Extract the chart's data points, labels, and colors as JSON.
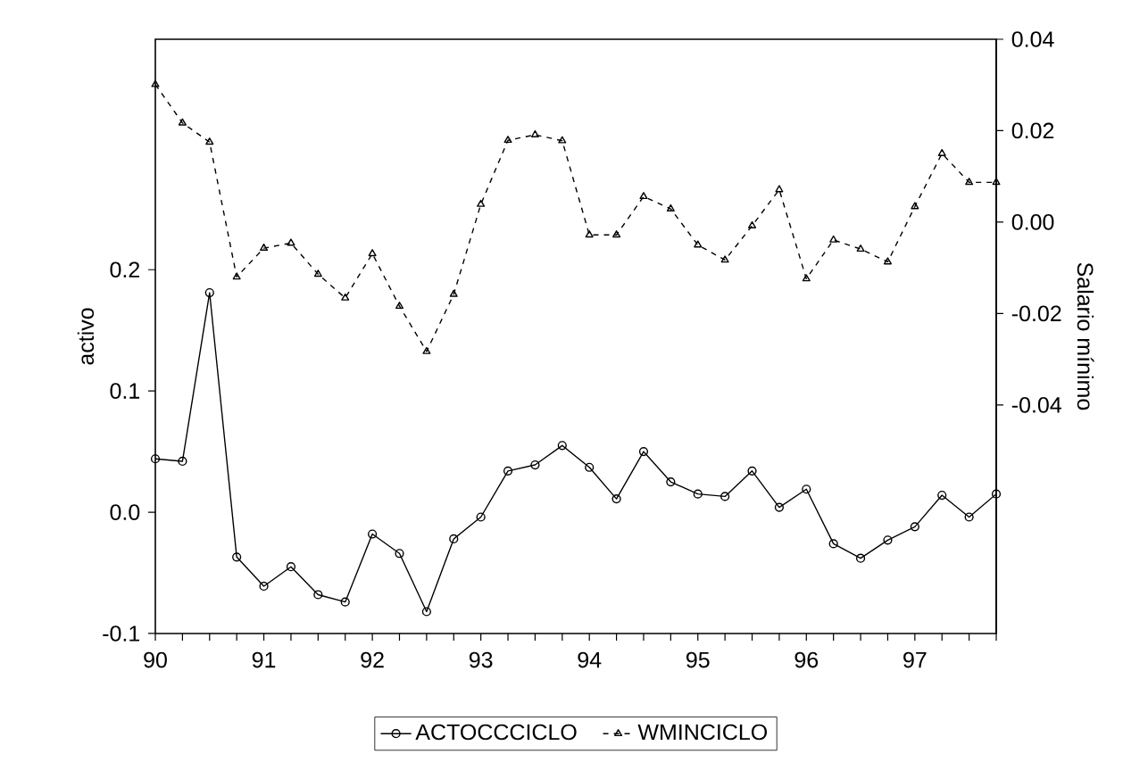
{
  "chart_data": {
    "type": "line",
    "ylabel": "activo",
    "y2label": "Salario mínimo",
    "x": [
      90,
      90.25,
      90.5,
      90.75,
      91,
      91.25,
      91.5,
      91.75,
      92,
      92.25,
      92.5,
      92.75,
      93,
      93.25,
      93.5,
      93.75,
      94,
      94.25,
      94.5,
      94.75,
      95,
      95.25,
      95.5,
      95.75,
      96,
      96.25,
      96.5,
      96.75,
      97,
      97.25,
      97.5,
      97.75
    ],
    "series": [
      {
        "name": "ACTOCCCICLO",
        "color": "#000000",
        "marker": "circle",
        "line_style": "solid",
        "values": [
          0.044,
          0.042,
          0.181,
          -0.037,
          -0.061,
          -0.045,
          -0.068,
          -0.074,
          -0.018,
          -0.034,
          -0.082,
          -0.022,
          -0.004,
          0.034,
          0.039,
          0.055,
          0.037,
          0.011,
          0.05,
          0.025,
          0.015,
          0.013,
          0.034,
          0.004,
          0.019,
          -0.026,
          -0.038,
          -0.023,
          -0.012,
          0.014,
          -0.004,
          0.015
        ]
      },
      {
        "name": "WMINCICLO",
        "color": "#000000",
        "marker": "triangle",
        "line_style": "dashed",
        "axis": "y2",
        "values": [
          0.0301,
          0.0217,
          0.0175,
          -0.012,
          -0.0057,
          -0.0046,
          -0.0114,
          -0.0166,
          -0.0069,
          -0.0184,
          -0.0283,
          -0.0158,
          0.0039,
          0.0179,
          0.0191,
          0.0178,
          -0.0028,
          -0.0028,
          0.0056,
          0.0029,
          -0.005,
          -0.0083,
          -0.0008,
          0.0071,
          -0.0124,
          -0.0039,
          -0.0059,
          -0.0087,
          0.0034,
          0.015,
          0.0087,
          0.0087
        ]
      }
    ],
    "xlim": [
      90,
      97.75
    ],
    "xticks": [
      90,
      {
        "value": 90.25,
        "label": null
      },
      {
        "value": 90.5,
        "label": null
      },
      {
        "value": 90.75,
        "label": null
      },
      91,
      {
        "value": 91.25,
        "label": null
      },
      {
        "value": 91.5,
        "label": null
      },
      {
        "value": 91.75,
        "label": null
      },
      92,
      {
        "value": 92.25,
        "label": null
      },
      {
        "value": 92.5,
        "label": null
      },
      {
        "value": 92.75,
        "label": null
      },
      93,
      {
        "value": 93.25,
        "label": null
      },
      {
        "value": 93.5,
        "label": null
      },
      {
        "value": 93.75,
        "label": null
      },
      94,
      {
        "value": 94.25,
        "label": null
      },
      {
        "value": 94.5,
        "label": null
      },
      {
        "value": 94.75,
        "label": null
      },
      95,
      {
        "value": 95.25,
        "label": null
      },
      {
        "value": 95.5,
        "label": null
      },
      {
        "value": 95.75,
        "label": null
      },
      96,
      {
        "value": 96.25,
        "label": null
      },
      {
        "value": 96.5,
        "label": null
      },
      {
        "value": 96.75,
        "label": null
      },
      97,
      {
        "value": 97.25,
        "label": null
      },
      {
        "value": 97.5,
        "label": null
      },
      {
        "value": 97.75,
        "label": null
      }
    ],
    "ylim": [
      -0.1,
      0.39
    ],
    "yticks": [
      -0.1,
      {
        "value": 0,
        "label": "0.0"
      },
      0.1,
      0.2
    ],
    "y2lim": [
      -0.09,
      0.04
    ],
    "y2ticks": [
      -0.04,
      -0.02,
      {
        "value": 0,
        "label": "0.00"
      },
      0.02,
      0.04
    ],
    "grid": false,
    "legend": "bottom"
  }
}
